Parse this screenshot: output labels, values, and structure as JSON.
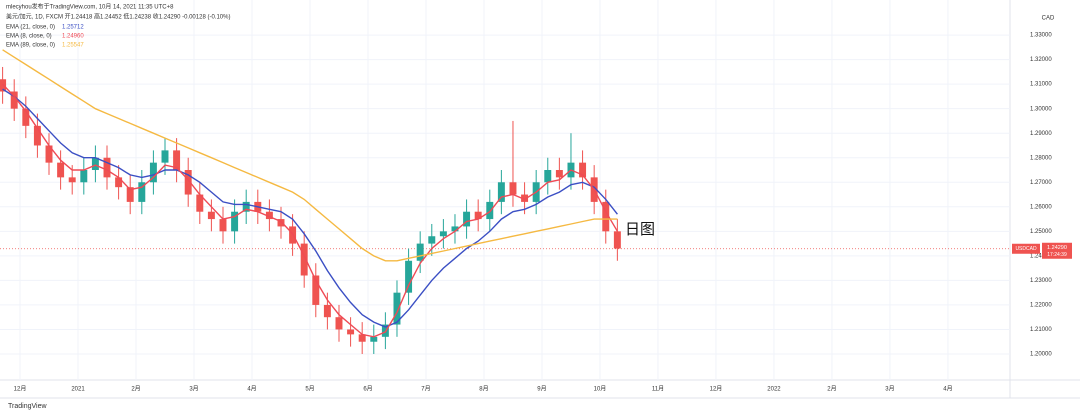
{
  "chart_data": {
    "type": "candlestick",
    "attribution": "mlecyhou发布于TradingView.com, 10月 14, 2021 11:35 UTC+8",
    "subtitle": "美元/加元, 1D, FXCM 开1.24418 高1.24452 低1.24238 收1.24290 -0.00128 (-0.10%)",
    "currency": "CAD",
    "annotation": "日图",
    "branding": "TradingView",
    "symbol": "USDCAD",
    "countdown": "17:24:39",
    "last_price": {
      "value": 1.2429,
      "label": "1.24290"
    },
    "up_color": "#26a69a",
    "down_color": "#ef5350",
    "x": [
      -0.3,
      -0.1,
      0.1,
      0.3,
      0.5,
      0.7,
      0.9,
      1.1,
      1.3,
      1.5,
      1.7,
      1.9,
      2.1,
      2.3,
      2.5,
      2.7,
      2.9,
      3.1,
      3.3,
      3.5,
      3.7,
      3.9,
      4.1,
      4.3,
      4.5,
      4.7,
      4.9,
      5.1,
      5.3,
      5.5,
      5.7,
      5.9,
      6.1,
      6.3,
      6.5,
      6.7,
      6.9,
      7.1,
      7.3,
      7.5,
      7.7,
      7.9,
      8.1,
      8.3,
      8.5,
      8.7,
      8.9,
      9.1,
      9.3,
      9.5,
      9.7,
      9.9,
      10.1,
      10.3
    ],
    "open": [
      1.312,
      1.307,
      1.3,
      1.293,
      1.285,
      1.278,
      1.272,
      1.27,
      1.275,
      1.28,
      1.272,
      1.268,
      1.262,
      1.27,
      1.278,
      1.283,
      1.275,
      1.265,
      1.258,
      1.255,
      1.25,
      1.258,
      1.262,
      1.258,
      1.255,
      1.252,
      1.245,
      1.232,
      1.22,
      1.215,
      1.21,
      1.208,
      1.205,
      1.207,
      1.212,
      1.225,
      1.238,
      1.245,
      1.248,
      1.25,
      1.252,
      1.258,
      1.255,
      1.262,
      1.27,
      1.265,
      1.262,
      1.27,
      1.275,
      1.272,
      1.278,
      1.272,
      1.262,
      1.25
    ],
    "high": [
      1.317,
      1.312,
      1.305,
      1.298,
      1.29,
      1.283,
      1.277,
      1.28,
      1.285,
      1.285,
      1.277,
      1.273,
      1.275,
      1.283,
      1.288,
      1.288,
      1.28,
      1.27,
      1.263,
      1.26,
      1.263,
      1.267,
      1.267,
      1.263,
      1.26,
      1.257,
      1.25,
      1.237,
      1.225,
      1.22,
      1.215,
      1.213,
      1.212,
      1.217,
      1.23,
      1.243,
      1.25,
      1.253,
      1.255,
      1.257,
      1.263,
      1.263,
      1.267,
      1.275,
      1.295,
      1.27,
      1.275,
      1.28,
      1.28,
      1.29,
      1.283,
      1.277,
      1.267,
      1.255
    ],
    "low": [
      1.302,
      1.295,
      1.288,
      1.28,
      1.273,
      1.267,
      1.265,
      1.265,
      1.27,
      1.267,
      1.263,
      1.257,
      1.257,
      1.265,
      1.273,
      1.27,
      1.26,
      1.253,
      1.25,
      1.245,
      1.245,
      1.253,
      1.253,
      1.25,
      1.247,
      1.24,
      1.227,
      1.215,
      1.21,
      1.205,
      1.203,
      1.2,
      1.2,
      1.202,
      1.207,
      1.22,
      1.233,
      1.24,
      1.243,
      1.245,
      1.247,
      1.25,
      1.25,
      1.257,
      1.26,
      1.257,
      1.257,
      1.265,
      1.267,
      1.267,
      1.267,
      1.257,
      1.245,
      1.238
    ],
    "close": [
      1.307,
      1.3,
      1.293,
      1.285,
      1.278,
      1.272,
      1.27,
      1.275,
      1.28,
      1.272,
      1.268,
      1.262,
      1.27,
      1.278,
      1.283,
      1.275,
      1.265,
      1.258,
      1.255,
      1.25,
      1.258,
      1.262,
      1.258,
      1.255,
      1.252,
      1.245,
      1.232,
      1.22,
      1.215,
      1.21,
      1.208,
      1.205,
      1.207,
      1.212,
      1.225,
      1.238,
      1.245,
      1.248,
      1.25,
      1.252,
      1.258,
      1.255,
      1.262,
      1.27,
      1.265,
      1.262,
      1.27,
      1.275,
      1.272,
      1.278,
      1.272,
      1.262,
      1.25,
      1.243
    ],
    "series": [
      {
        "name": "EMA (21, close, 0)",
        "color": "#3b4fc4",
        "last": {
          "value": 1.25712,
          "label": "1.25712"
        },
        "values": [
          1.308,
          1.305,
          1.301,
          1.296,
          1.291,
          1.286,
          1.282,
          1.28,
          1.28,
          1.278,
          1.276,
          1.273,
          1.272,
          1.273,
          1.275,
          1.275,
          1.273,
          1.27,
          1.266,
          1.262,
          1.261,
          1.261,
          1.26,
          1.259,
          1.258,
          1.255,
          1.249,
          1.242,
          1.234,
          1.227,
          1.221,
          1.216,
          1.213,
          1.211,
          1.213,
          1.218,
          1.224,
          1.23,
          1.235,
          1.239,
          1.243,
          1.246,
          1.25,
          1.255,
          1.258,
          1.259,
          1.261,
          1.264,
          1.266,
          1.269,
          1.27,
          1.268,
          1.263,
          1.257
        ]
      },
      {
        "name": "EMA (8, close, 0)",
        "color": "#ef4a55",
        "last": {
          "value": 1.2496,
          "label": "1.24960"
        },
        "values": [
          1.31,
          1.305,
          1.299,
          1.292,
          1.285,
          1.279,
          1.275,
          1.275,
          1.277,
          1.275,
          1.272,
          1.267,
          1.268,
          1.272,
          1.277,
          1.276,
          1.271,
          1.265,
          1.26,
          1.255,
          1.256,
          1.259,
          1.258,
          1.256,
          1.254,
          1.249,
          1.24,
          1.23,
          1.222,
          1.216,
          1.212,
          1.208,
          1.207,
          1.209,
          1.217,
          1.228,
          1.237,
          1.243,
          1.247,
          1.25,
          1.254,
          1.255,
          1.258,
          1.264,
          1.265,
          1.263,
          1.266,
          1.27,
          1.271,
          1.275,
          1.273,
          1.267,
          1.258,
          1.25
        ]
      },
      {
        "name": "EMA (89, close, 0)",
        "color": "#f5b942",
        "last": {
          "value": 1.25547,
          "label": "1.25547"
        },
        "values": [
          1.324,
          1.321,
          1.318,
          1.315,
          1.312,
          1.309,
          1.306,
          1.303,
          1.3,
          1.298,
          1.296,
          1.294,
          1.292,
          1.29,
          1.288,
          1.286,
          1.284,
          1.282,
          1.28,
          1.278,
          1.276,
          1.274,
          1.272,
          1.27,
          1.268,
          1.266,
          1.263,
          1.259,
          1.255,
          1.251,
          1.247,
          1.243,
          1.24,
          1.238,
          1.238,
          1.239,
          1.24,
          1.241,
          1.242,
          1.243,
          1.244,
          1.245,
          1.246,
          1.247,
          1.248,
          1.249,
          1.25,
          1.251,
          1.252,
          1.253,
          1.254,
          1.255,
          1.255,
          1.255
        ]
      }
    ],
    "xlim": [
      -0.345,
      17.07
    ],
    "xticks": [
      {
        "value": 0,
        "label": "12月"
      },
      {
        "value": 1,
        "label": "2021"
      },
      {
        "value": 2,
        "label": "2月"
      },
      {
        "value": 3,
        "label": "3月"
      },
      {
        "value": 4,
        "label": "4月"
      },
      {
        "value": 5,
        "label": "5月"
      },
      {
        "value": 6,
        "label": "6月"
      },
      {
        "value": 7,
        "label": "7月"
      },
      {
        "value": 8,
        "label": "8月"
      },
      {
        "value": 9,
        "label": "9月"
      },
      {
        "value": 10,
        "label": "10月"
      },
      {
        "value": 11,
        "label": "11月"
      },
      {
        "value": 12,
        "label": "12月"
      },
      {
        "value": 13,
        "label": "2022"
      },
      {
        "value": 14,
        "label": "2月"
      },
      {
        "value": 15,
        "label": "3月"
      },
      {
        "value": 16,
        "label": "4月"
      }
    ],
    "ylim": [
      1.1894,
      1.3443
    ],
    "yticks": [
      {
        "value": 1.33,
        "label": "1.33000"
      },
      {
        "value": 1.32,
        "label": "1.32000"
      },
      {
        "value": 1.31,
        "label": "1.31000"
      },
      {
        "value": 1.3,
        "label": "1.30000"
      },
      {
        "value": 1.29,
        "label": "1.29000"
      },
      {
        "value": 1.28,
        "label": "1.28000"
      },
      {
        "value": 1.27,
        "label": "1.27000"
      },
      {
        "value": 1.26,
        "label": "1.26000"
      },
      {
        "value": 1.25,
        "label": "1.25000"
      },
      {
        "value": 1.24,
        "label": "1.24000"
      },
      {
        "value": 1.23,
        "label": "1.23000"
      },
      {
        "value": 1.22,
        "label": "1.22000"
      },
      {
        "value": 1.21,
        "label": "1.21000"
      },
      {
        "value": 1.2,
        "label": "1.20000"
      }
    ],
    "grid": true
  }
}
